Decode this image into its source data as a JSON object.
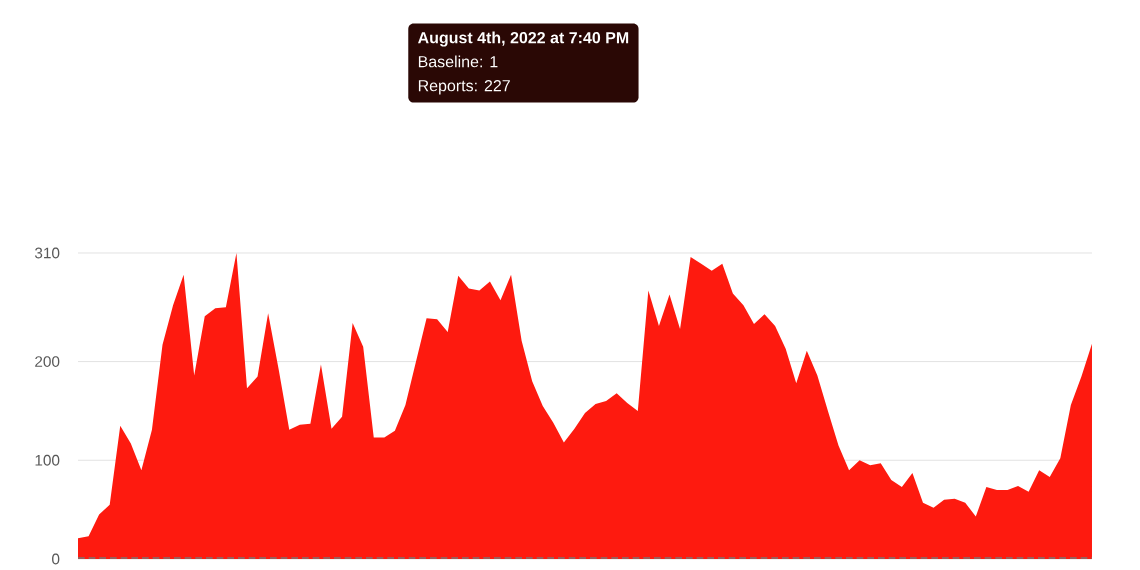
{
  "chart_data": {
    "type": "area",
    "categories": [
      null,
      null,
      null,
      null,
      null,
      null,
      null,
      null,
      null,
      null,
      null,
      null,
      null,
      null,
      null,
      null,
      null,
      null,
      null,
      null,
      null,
      null,
      null,
      null,
      null,
      null,
      null,
      null,
      null,
      null,
      null,
      null,
      null,
      null,
      null,
      null,
      null,
      null,
      null,
      null,
      null,
      null,
      null,
      null,
      null,
      null,
      null,
      null,
      null,
      null,
      null,
      null,
      null,
      null,
      null,
      null,
      null,
      null,
      null,
      null,
      null,
      null,
      null,
      null,
      null,
      null,
      null,
      null,
      null,
      null,
      null,
      null,
      null,
      null,
      null,
      null,
      null,
      null,
      null,
      null,
      null,
      null,
      null,
      null,
      null,
      null,
      null,
      null,
      null,
      null,
      null,
      null,
      null,
      null,
      null,
      null,
      null
    ],
    "values": [
      21,
      23,
      45,
      55,
      135,
      117,
      90,
      131,
      217,
      257,
      288,
      186,
      246,
      254,
      255,
      310,
      173,
      185,
      249,
      192,
      131,
      136,
      137,
      197,
      132,
      144,
      239,
      215,
      123,
      123,
      130,
      156,
      200,
      244,
      243,
      230,
      287,
      274,
      272,
      281,
      262,
      288,
      221,
      180,
      155,
      138,
      118,
      132,
      148,
      157,
      160,
      168,
      158,
      150,
      272,
      236,
      268,
      233,
      306,
      299,
      292,
      299,
      269,
      257,
      238,
      248,
      236,
      213,
      178,
      211,
      186,
      150,
      115,
      90,
      100,
      95,
      97,
      80,
      73,
      87,
      57,
      52,
      60,
      61,
      57,
      43,
      73,
      70,
      70,
      74,
      68,
      90,
      83,
      102,
      156,
      185,
      218
    ],
    "color": "#fe1a0f",
    "ylim": [
      0,
      310
    ],
    "yticks": [
      0,
      100,
      200,
      310
    ],
    "grid": "y",
    "ref_lines": [
      {
        "axis": "y",
        "value": 1,
        "line_style": "dashed",
        "color": "#777777"
      }
    ],
    "annotations": [
      "August 4th, 2022 at 7:40 PM",
      "Baseline: 1",
      "Reports: 227"
    ]
  }
}
